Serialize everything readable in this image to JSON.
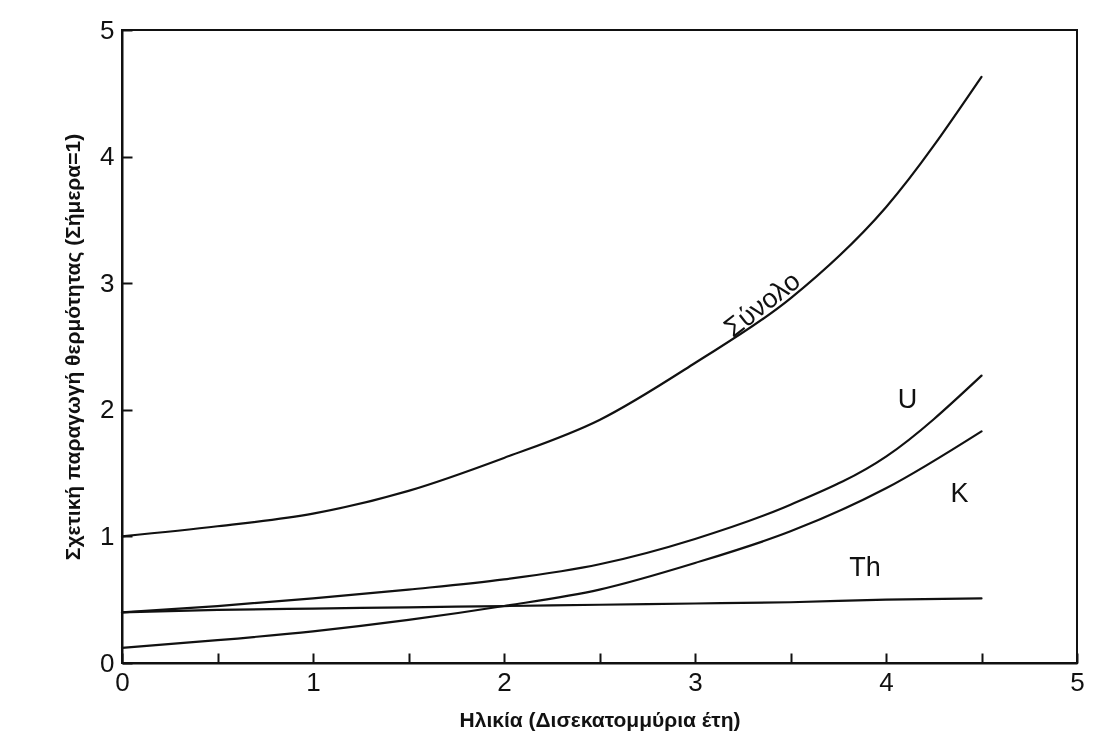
{
  "chart_data": {
    "type": "line",
    "xlabel": "Ηλικία (Δισεκατομμύρια έτη)",
    "ylabel": "Σχετική παραγωγή θερμότητας (Σήμερα=1)",
    "x": [
      0,
      0.5,
      1,
      1.5,
      2,
      2.5,
      3,
      3.5,
      4,
      4.5
    ],
    "xlim": [
      0,
      5
    ],
    "ylim": [
      0,
      5
    ],
    "xticks": [
      0,
      {
        "value": 0.5,
        "label": null
      },
      1,
      {
        "value": 1.5,
        "label": null
      },
      2,
      {
        "value": 2.5,
        "label": null
      },
      3,
      {
        "value": 3.5,
        "label": null
      },
      4,
      {
        "value": 4.5,
        "label": null
      },
      5
    ],
    "yticks": [
      0,
      1,
      2,
      3,
      4,
      5
    ],
    "grid": false,
    "legend": false,
    "marker": "none",
    "line_style": "solid",
    "series": [
      {
        "name": "Σύνολο",
        "color": "#111111",
        "values": [
          1.0,
          1.08,
          1.18,
          1.36,
          1.62,
          1.92,
          2.37,
          2.88,
          3.6,
          4.63
        ]
      },
      {
        "name": "U",
        "color": "#111111",
        "values": [
          0.4,
          0.45,
          0.51,
          0.58,
          0.66,
          0.78,
          0.98,
          1.25,
          1.63,
          2.27
        ]
      },
      {
        "name": "K",
        "color": "#111111",
        "values": [
          0.12,
          0.18,
          0.25,
          0.34,
          0.45,
          0.58,
          0.79,
          1.04,
          1.38,
          1.83
        ]
      },
      {
        "name": "Th",
        "color": "#111111",
        "values": [
          0.4,
          0.42,
          0.43,
          0.44,
          0.45,
          0.46,
          0.47,
          0.48,
          0.5,
          0.51
        ]
      }
    ]
  }
}
